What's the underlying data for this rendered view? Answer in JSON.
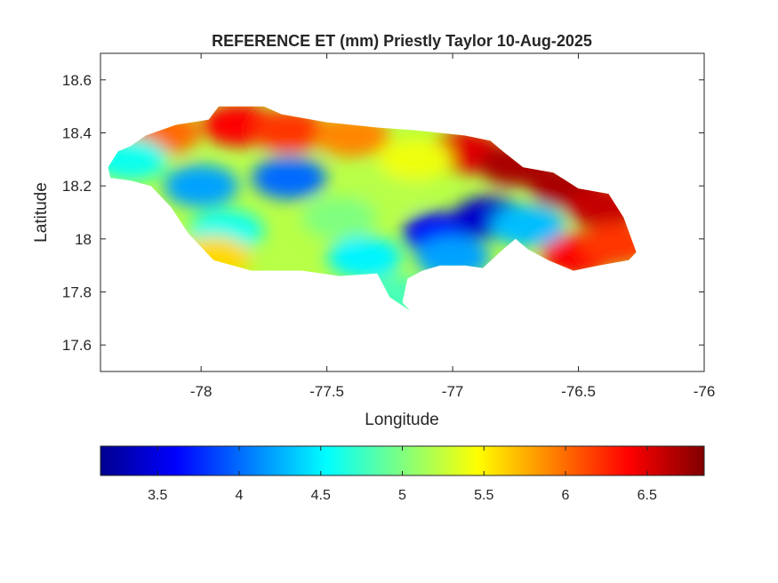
{
  "figure": {
    "title": "REFERENCE ET (mm) Priestly Taylor 10-Aug-2025"
  },
  "axes": {
    "xlabel": "Longitude",
    "ylabel": "Latitude",
    "xlim": [
      -78.4,
      -76
    ],
    "ylim": [
      17.5,
      18.7
    ],
    "xticks": [
      -78,
      -77.5,
      -77,
      -76.5,
      -76
    ],
    "xtick_labels": [
      "-78",
      "-77.5",
      "-77",
      "-76.5",
      "-76"
    ],
    "yticks": [
      17.6,
      17.8,
      18,
      18.2,
      18.4,
      18.6
    ],
    "ytick_labels": [
      "17.6",
      "17.8",
      "18",
      "18.2",
      "18.4",
      "18.6"
    ],
    "grid": false
  },
  "colorbar": {
    "colormap": "jet",
    "clim": [
      3.15,
      6.85
    ],
    "ticks": [
      3.5,
      4,
      4.5,
      5,
      5.5,
      6,
      6.5
    ],
    "tick_labels": [
      "3.5",
      "4",
      "4.5",
      "5",
      "5.5",
      "6",
      "6.5"
    ],
    "orientation": "horizontal"
  },
  "chart_data": {
    "type": "heatmap",
    "variable": "Reference ET (mm)",
    "region_outline_lonlat": [
      [
        -78.37,
        18.27
      ],
      [
        -78.33,
        18.33
      ],
      [
        -78.28,
        18.35
      ],
      [
        -78.22,
        18.39
      ],
      [
        -78.1,
        18.43
      ],
      [
        -77.97,
        18.45
      ],
      [
        -77.93,
        18.5
      ],
      [
        -77.75,
        18.5
      ],
      [
        -77.68,
        18.47
      ],
      [
        -77.5,
        18.44
      ],
      [
        -77.3,
        18.42
      ],
      [
        -77.15,
        18.41
      ],
      [
        -77.05,
        18.4
      ],
      [
        -76.95,
        18.39
      ],
      [
        -76.85,
        18.37
      ],
      [
        -76.8,
        18.33
      ],
      [
        -76.72,
        18.27
      ],
      [
        -76.6,
        18.25
      ],
      [
        -76.5,
        18.19
      ],
      [
        -76.38,
        18.17
      ],
      [
        -76.32,
        18.08
      ],
      [
        -76.27,
        17.95
      ],
      [
        -76.3,
        17.92
      ],
      [
        -76.42,
        17.9
      ],
      [
        -76.52,
        17.88
      ],
      [
        -76.62,
        17.92
      ],
      [
        -76.7,
        17.96
      ],
      [
        -76.75,
        18.0
      ],
      [
        -76.8,
        17.96
      ],
      [
        -76.88,
        17.89
      ],
      [
        -76.95,
        17.9
      ],
      [
        -77.05,
        17.9
      ],
      [
        -77.12,
        17.88
      ],
      [
        -77.18,
        17.85
      ],
      [
        -77.2,
        17.76
      ],
      [
        -77.17,
        17.73
      ],
      [
        -77.25,
        17.78
      ],
      [
        -77.3,
        17.87
      ],
      [
        -77.45,
        17.86
      ],
      [
        -77.6,
        17.88
      ],
      [
        -77.8,
        17.88
      ],
      [
        -77.95,
        17.92
      ],
      [
        -78.05,
        18.02
      ],
      [
        -78.12,
        18.12
      ],
      [
        -78.2,
        18.2
      ],
      [
        -78.28,
        18.22
      ],
      [
        -78.36,
        18.23
      ]
    ],
    "value_centers": [
      {
        "lon": -77.85,
        "lat": 18.43,
        "value": 6.4
      },
      {
        "lon": -77.65,
        "lat": 18.41,
        "value": 6.2
      },
      {
        "lon": -78.15,
        "lat": 18.4,
        "value": 6.0
      },
      {
        "lon": -77.4,
        "lat": 18.39,
        "value": 5.9
      },
      {
        "lon": -76.95,
        "lat": 18.33,
        "value": 6.5
      },
      {
        "lon": -76.75,
        "lat": 18.28,
        "value": 6.7
      },
      {
        "lon": -76.55,
        "lat": 18.2,
        "value": 6.7
      },
      {
        "lon": -76.4,
        "lat": 18.12,
        "value": 6.6
      },
      {
        "lon": -76.5,
        "lat": 17.94,
        "value": 6.4
      },
      {
        "lon": -76.35,
        "lat": 17.98,
        "value": 6.2
      },
      {
        "lon": -77.65,
        "lat": 18.23,
        "value": 4.0
      },
      {
        "lon": -78.0,
        "lat": 18.2,
        "value": 4.2
      },
      {
        "lon": -78.28,
        "lat": 18.3,
        "value": 4.6
      },
      {
        "lon": -77.9,
        "lat": 18.03,
        "value": 4.6
      },
      {
        "lon": -77.95,
        "lat": 17.93,
        "value": 5.6
      },
      {
        "lon": -77.45,
        "lat": 18.08,
        "value": 5.0
      },
      {
        "lon": -77.25,
        "lat": 18.2,
        "value": 5.2
      },
      {
        "lon": -77.35,
        "lat": 17.93,
        "value": 4.5
      },
      {
        "lon": -77.05,
        "lat": 18.02,
        "value": 3.6
      },
      {
        "lon": -76.85,
        "lat": 18.08,
        "value": 3.4
      },
      {
        "lon": -77.0,
        "lat": 17.93,
        "value": 4.2
      },
      {
        "lon": -76.7,
        "lat": 18.05,
        "value": 4.3
      },
      {
        "lon": -77.22,
        "lat": 17.78,
        "value": 4.8
      },
      {
        "lon": -77.15,
        "lat": 18.3,
        "value": 5.4
      }
    ]
  }
}
